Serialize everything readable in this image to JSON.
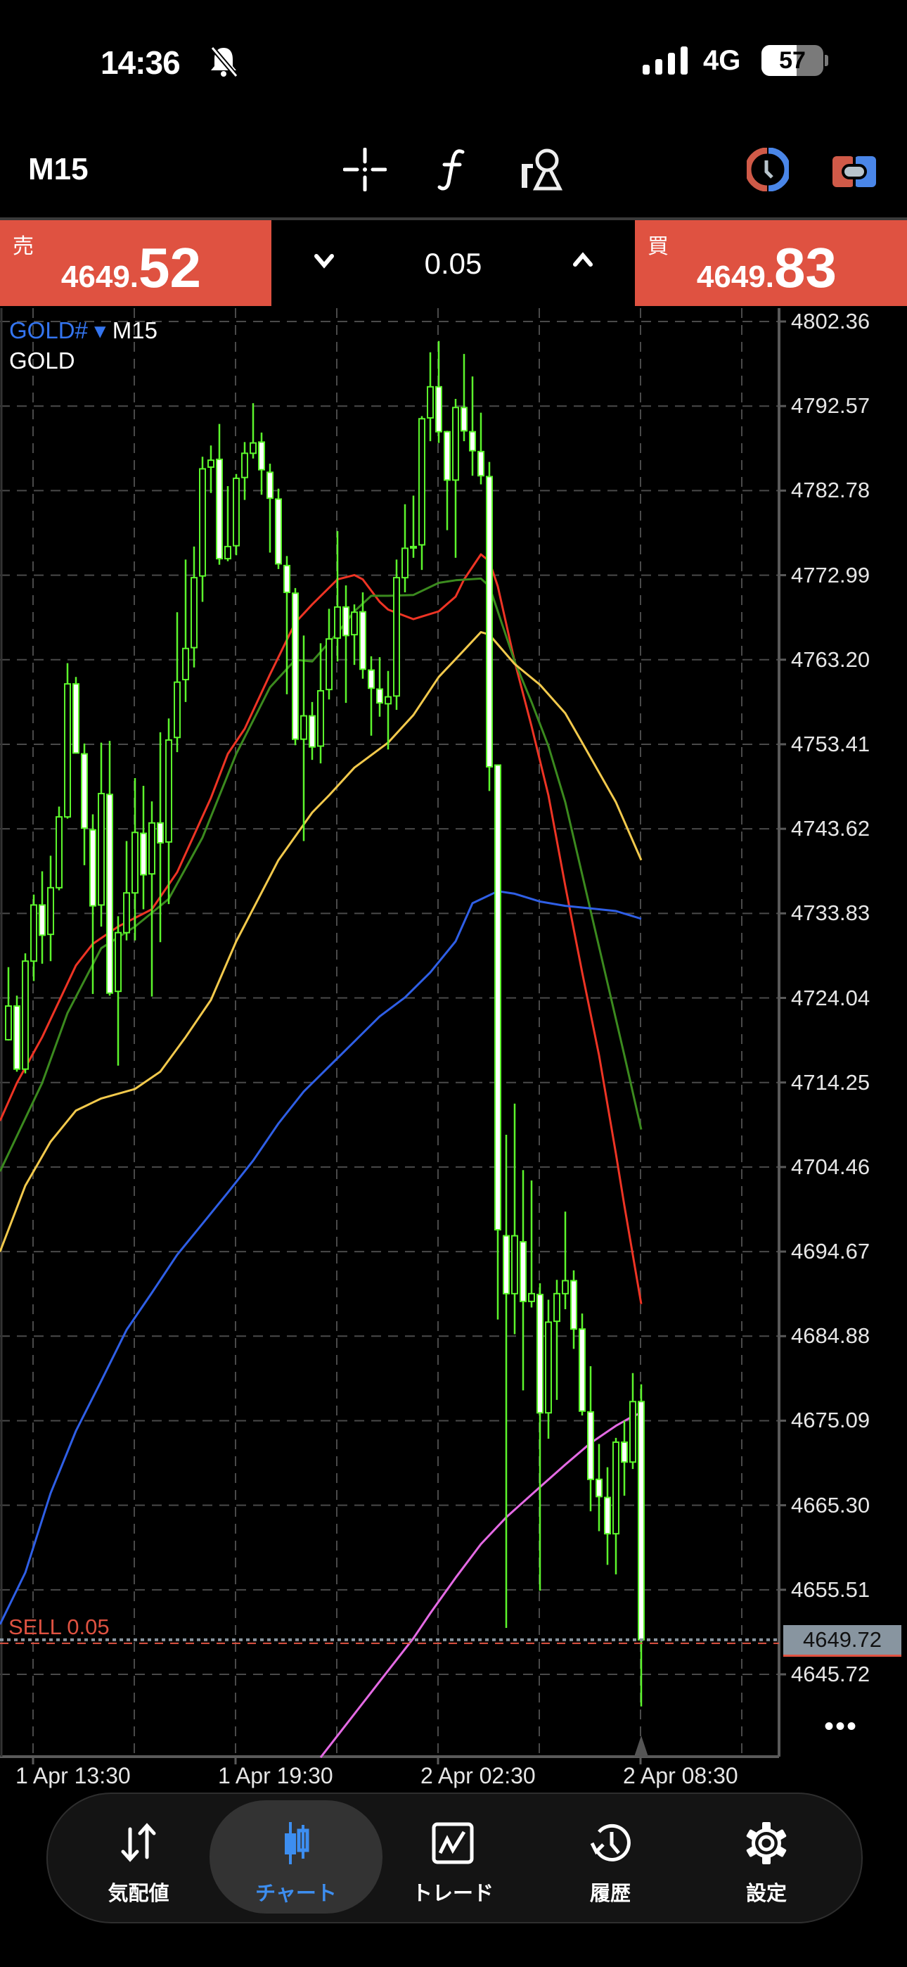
{
  "status_bar": {
    "time": "14:36",
    "network": "4G",
    "battery": "57",
    "battery_percent": 57,
    "icons": [
      "bell-slash-icon",
      "signal-icon",
      "battery-icon"
    ]
  },
  "toolbar": {
    "timeframe": "M15",
    "icons": [
      "crosshair-icon",
      "indicator-f-icon",
      "objects-icon",
      "one-click-trading-icon",
      "trade-toggle-icon"
    ]
  },
  "trade_panel": {
    "sell": {
      "label": "売",
      "price_prefix": "4649.",
      "price_suffix": "52"
    },
    "buy": {
      "label": "買",
      "price_prefix": "4649.",
      "price_suffix": "83"
    },
    "volume": "0.05"
  },
  "chart_header": {
    "symbol": "GOLD#",
    "timeframe": "M15",
    "description": "GOLD"
  },
  "position_line": {
    "label": "SELL 0.05",
    "price": 4649.72
  },
  "current_price": "4649.72",
  "more_label": "•••",
  "colors": {
    "bull_outline": "#5cf52c",
    "bear_fill": "#ffffff",
    "ma_red": "#ee3424",
    "ma_green": "#3b8a1e",
    "ma_yellow": "#f2c94c",
    "ma_blue": "#2f5fe6",
    "ma_magenta": "#e46ae4",
    "sell": "#df5241",
    "accent": "#3d8ef0"
  },
  "nav": {
    "items": [
      {
        "label": "気配値",
        "icon": "quotes-arrows-icon"
      },
      {
        "label": "チャート",
        "icon": "candlestick-icon",
        "active": true
      },
      {
        "label": "トレード",
        "icon": "trade-chart-icon"
      },
      {
        "label": "履歴",
        "icon": "history-icon"
      },
      {
        "label": "設定",
        "icon": "gear-icon"
      }
    ]
  },
  "chart_data": {
    "type": "candlestick",
    "symbol": "GOLD#",
    "timeframe": "M15",
    "y_ticks": [
      "4802.36",
      "4792.57",
      "4782.78",
      "4772.99",
      "4763.20",
      "4753.41",
      "4743.62",
      "4733.83",
      "4724.04",
      "4714.25",
      "4704.46",
      "4694.67",
      "4684.88",
      "4675.09",
      "4665.30",
      "4655.51",
      "4645.72"
    ],
    "x_ticks": [
      {
        "label": "1 Apr 13:30",
        "time": "1 Apr 13:30"
      },
      {
        "label": "1 Apr 19:30",
        "time": "1 Apr 19:30"
      },
      {
        "label": "2 Apr 02:30",
        "time": "2 Apr 02:30"
      },
      {
        "label": "2 Apr 08:30",
        "time": "2 Apr 08:30"
      }
    ],
    "grid": true,
    "candle_fields": [
      "time",
      "open",
      "high",
      "low",
      "close"
    ],
    "candles": [
      [
        "1 Apr 12:45",
        4719.2,
        4727.6,
        4719.1,
        4723.1
      ],
      [
        "1 Apr 13:00",
        4723.1,
        4724.3,
        4715.5,
        4715.8
      ],
      [
        "1 Apr 13:15",
        4715.8,
        4729.2,
        4715.3,
        4728.3
      ],
      [
        "1 Apr 13:30",
        4728.3,
        4736.0,
        4726.0,
        4734.8
      ],
      [
        "1 Apr 13:45",
        4734.8,
        4738.7,
        4728.0,
        4731.3
      ],
      [
        "1 Apr 14:00",
        4731.4,
        4740.5,
        4728.3,
        4736.8
      ],
      [
        "1 Apr 14:15",
        4736.8,
        4746.2,
        4736.5,
        4745.0
      ],
      [
        "1 Apr 14:30",
        4745.0,
        4762.8,
        4744.8,
        4760.4
      ],
      [
        "1 Apr 14:45",
        4760.4,
        4761.2,
        4752.4,
        4752.4
      ],
      [
        "1 Apr 15:00",
        4752.3,
        4753.5,
        4739.4,
        4743.7
      ],
      [
        "1 Apr 15:15",
        4743.5,
        4745.3,
        4724.5,
        4734.7
      ],
      [
        "1 Apr 15:30",
        4734.8,
        4753.6,
        4732.3,
        4747.7
      ],
      [
        "1 Apr 15:45",
        4747.6,
        4753.8,
        4724.3,
        4724.6
      ],
      [
        "1 Apr 16:00",
        4724.8,
        4733.5,
        4716.2,
        4731.6
      ],
      [
        "1 Apr 16:15",
        4731.6,
        4742.2,
        4730.7,
        4736.2
      ],
      [
        "1 Apr 16:30",
        4736.2,
        4749.5,
        4730.7,
        4743.2
      ],
      [
        "1 Apr 16:45",
        4743.1,
        4748.6,
        4734.3,
        4738.3
      ],
      [
        "1 Apr 17:00",
        4738.4,
        4746.8,
        4724.2,
        4744.3
      ],
      [
        "1 Apr 17:15",
        4744.3,
        4754.8,
        4730.5,
        4742.0
      ],
      [
        "1 Apr 17:30",
        4742.1,
        4756.4,
        4734.9,
        4753.9
      ],
      [
        "1 Apr 17:45",
        4754.2,
        4768.7,
        4752.5,
        4760.6
      ],
      [
        "1 Apr 18:00",
        4760.9,
        4774.8,
        4758.3,
        4764.5
      ],
      [
        "1 Apr 18:15",
        4764.6,
        4776.3,
        4762.3,
        4772.7
      ],
      [
        "1 Apr 18:30",
        4772.9,
        4786.7,
        4769.9,
        4785.3
      ],
      [
        "1 Apr 18:45",
        4785.5,
        4788.0,
        4782.5,
        4786.3
      ],
      [
        "1 Apr 19:00",
        4786.4,
        4790.5,
        4774.2,
        4774.9
      ],
      [
        "1 Apr 19:15",
        4774.9,
        4783.3,
        4774.6,
        4776.3
      ],
      [
        "1 Apr 19:30",
        4776.4,
        4784.7,
        4775.3,
        4784.2
      ],
      [
        "1 Apr 19:45",
        4784.3,
        4788.4,
        4781.7,
        4787.1
      ],
      [
        "1 Apr 20:00",
        4787.1,
        4792.9,
        4786.5,
        4788.3
      ],
      [
        "1 Apr 20:15",
        4788.4,
        4789.5,
        4782.3,
        4785.2
      ],
      [
        "1 Apr 20:30",
        4784.9,
        4785.9,
        4775.6,
        4781.9
      ],
      [
        "1 Apr 20:45",
        4781.8,
        4783.0,
        4773.7,
        4774.3
      ],
      [
        "1 Apr 21:00",
        4774.1,
        4775.2,
        4759.2,
        4771.0
      ],
      [
        "1 Apr 21:15",
        4770.9,
        4771.5,
        4753.3,
        4754.0
      ],
      [
        "1 Apr 21:30",
        4754.0,
        4766.0,
        4742.2,
        4756.7
      ],
      [
        "1 Apr 21:45",
        4756.7,
        4758.3,
        4751.6,
        4753.1
      ],
      [
        "1 Apr 22:00",
        4753.2,
        4765.1,
        4751.2,
        4759.6
      ],
      [
        "1 Apr 22:15",
        4759.75,
        4769.1,
        4758.6,
        4765.6
      ],
      [
        "1 Apr 22:30",
        4765.7,
        4778.1,
        4763.0,
        4769.3
      ],
      [
        "1 Apr 22:45",
        4769.3,
        4771.8,
        4758.2,
        4766.0
      ],
      [
        "1 Apr 23:00",
        4766.1,
        4769.6,
        4762.6,
        4768.7
      ],
      [
        "1 Apr 23:15",
        4768.75,
        4771.0,
        4761.0,
        4762.1
      ],
      [
        "1 Apr 23:30",
        4762.0,
        4763.6,
        4754.4,
        4759.9
      ],
      [
        "1 Apr 23:45",
        4759.8,
        4763.5,
        4756.6,
        4758.2
      ],
      [
        "2 Apr 01:00",
        4758.1,
        4761.9,
        4752.8,
        4758.9
      ],
      [
        "2 Apr 01:15",
        4759.0,
        4774.8,
        4757.4,
        4772.7
      ],
      [
        "2 Apr 01:30",
        4772.7,
        4781.2,
        4771.0,
        4776.1
      ],
      [
        "2 Apr 01:45",
        4776.3,
        4782.2,
        4775.0,
        4776.3
      ],
      [
        "2 Apr 02:00",
        4776.5,
        4791.4,
        4773.6,
        4791.1
      ],
      [
        "2 Apr 02:15",
        4791.2,
        4798.8,
        4788.5,
        4794.8
      ],
      [
        "2 Apr 02:30",
        4794.8,
        4800.1,
        4788.3,
        4789.6
      ],
      [
        "2 Apr 02:45",
        4789.6,
        4789.7,
        4778.2,
        4784.0
      ],
      [
        "2 Apr 03:00",
        4784.0,
        4793.4,
        4775.0,
        4792.4
      ],
      [
        "2 Apr 03:15",
        4792.4,
        4798.6,
        4788.5,
        4789.7
      ],
      [
        "2 Apr 03:30",
        4789.6,
        4796.0,
        4784.5,
        4787.4
      ],
      [
        "2 Apr 03:45",
        4787.3,
        4791.8,
        4783.5,
        4784.5
      ],
      [
        "2 Apr 04:00",
        4784.4,
        4786.1,
        4748.0,
        4750.8
      ],
      [
        "2 Apr 04:15",
        4751.0,
        4751.0,
        4686.8,
        4697.2
      ],
      [
        "2 Apr 04:30",
        4696.5,
        4708.2,
        4651.1,
        4689.8
      ],
      [
        "2 Apr 04:45",
        4689.8,
        4711.8,
        4685.1,
        4696.5
      ],
      [
        "2 Apr 05:00",
        4695.8,
        4704.1,
        4678.6,
        4688.9
      ],
      [
        "2 Apr 05:15",
        4688.9,
        4702.9,
        4688.2,
        4689.8
      ],
      [
        "2 Apr 05:30",
        4689.7,
        4691.0,
        4655.4,
        4676.0
      ],
      [
        "2 Apr 05:45",
        4676.0,
        4689.1,
        4673.0,
        4686.5
      ],
      [
        "2 Apr 06:00",
        4686.6,
        4691.4,
        4677.5,
        4689.8
      ],
      [
        "2 Apr 06:15",
        4689.8,
        4699.3,
        4688.0,
        4691.3
      ],
      [
        "2 Apr 06:30",
        4691.3,
        4692.5,
        4683.4,
        4685.7
      ],
      [
        "2 Apr 06:45",
        4685.7,
        4687.5,
        4675.7,
        4676.2
      ],
      [
        "2 Apr 07:00",
        4676.1,
        4681.4,
        4664.6,
        4668.3
      ],
      [
        "2 Apr 07:15",
        4668.3,
        4672.4,
        4662.3,
        4666.3
      ],
      [
        "2 Apr 07:30",
        4666.2,
        4669.7,
        4658.4,
        4662.0
      ],
      [
        "2 Apr 07:45",
        4662.0,
        4673.1,
        4657.3,
        4672.6
      ],
      [
        "2 Apr 08:00",
        4672.6,
        4675.1,
        4666.4,
        4670.3
      ],
      [
        "2 Apr 08:15",
        4670.3,
        4680.6,
        4669.5,
        4677.3
      ],
      [
        "2 Apr 08:30",
        4677.3,
        4679.3,
        4642.0,
        4649.72
      ]
    ],
    "moving_averages": [
      {
        "color": "#ee3424",
        "points": [
          [
            "1 Apr 12:45",
            4712
          ],
          [
            "1 Apr 13:00",
            4714.2
          ],
          [
            "1 Apr 13:45",
            4719.5
          ],
          [
            "1 Apr 14:45",
            4727.8
          ],
          [
            "1 Apr 15:15",
            4730.3
          ],
          [
            "1 Apr 16:00",
            4732.3
          ],
          [
            "1 Apr 17:00",
            4734.3
          ],
          [
            "1 Apr 17:45",
            4738.6
          ],
          [
            "1 Apr 18:45",
            4747.2
          ],
          [
            "1 Apr 19:15",
            4752.3
          ],
          [
            "1 Apr 19:45",
            4755.2
          ],
          [
            "1 Apr 20:30",
            4761.5
          ],
          [
            "1 Apr 21:15",
            4767.5
          ],
          [
            "1 Apr 21:45",
            4769.6
          ],
          [
            "1 Apr 22:30",
            4772.5
          ],
          [
            "1 Apr 23:00",
            4773.0
          ],
          [
            "1 Apr 23:15",
            4772.5
          ],
          [
            "1 Apr 23:45",
            4769.9
          ],
          [
            "2 Apr 01:00",
            4769.0
          ],
          [
            "2 Apr 01:45",
            4767.9
          ],
          [
            "2 Apr 02:30",
            4768.8
          ],
          [
            "2 Apr 03:00",
            4770.5
          ],
          [
            "2 Apr 03:15",
            4772.5
          ],
          [
            "2 Apr 03:45",
            4775.4
          ],
          [
            "2 Apr 04:00",
            4774.6
          ],
          [
            "2 Apr 04:15",
            4771.7
          ],
          [
            "2 Apr 04:45",
            4763.0
          ],
          [
            "2 Apr 05:15",
            4755.5
          ],
          [
            "2 Apr 05:45",
            4747.5
          ],
          [
            "2 Apr 06:15",
            4737.0
          ],
          [
            "2 Apr 06:45",
            4727.0
          ],
          [
            "2 Apr 07:15",
            4717.4
          ],
          [
            "2 Apr 07:45",
            4706.0
          ],
          [
            "2 Apr 08:00",
            4700.0
          ],
          [
            "2 Apr 08:30",
            4688.6
          ]
        ]
      },
      {
        "color": "#3b8a1e",
        "points": [
          [
            "1 Apr 12:45",
            4706
          ],
          [
            "1 Apr 13:45",
            4714.2
          ],
          [
            "1 Apr 14:30",
            4722.3
          ],
          [
            "1 Apr 15:30",
            4729.8
          ],
          [
            "1 Apr 16:30",
            4732.3
          ],
          [
            "1 Apr 17:30",
            4735.5
          ],
          [
            "1 Apr 18:30",
            4742.6
          ],
          [
            "1 Apr 19:30",
            4752.3
          ],
          [
            "1 Apr 20:30",
            4760.0
          ],
          [
            "1 Apr 21:15",
            4763.2
          ],
          [
            "1 Apr 21:45",
            4763.0
          ],
          [
            "1 Apr 22:30",
            4766.3
          ],
          [
            "1 Apr 23:00",
            4768.8
          ],
          [
            "1 Apr 23:30",
            4770.6
          ],
          [
            "2 Apr 01:00",
            4770.6
          ],
          [
            "2 Apr 01:45",
            4770.7
          ],
          [
            "2 Apr 02:30",
            4772.1
          ],
          [
            "2 Apr 03:00",
            4772.4
          ],
          [
            "2 Apr 03:45",
            4772.6
          ],
          [
            "2 Apr 04:00",
            4771.7
          ],
          [
            "2 Apr 04:15",
            4768.8
          ],
          [
            "2 Apr 04:45",
            4763.0
          ],
          [
            "2 Apr 05:15",
            4758.3
          ],
          [
            "2 Apr 05:45",
            4753.2
          ],
          [
            "2 Apr 06:15",
            4746.7
          ],
          [
            "2 Apr 08:00",
            4717.4
          ],
          [
            "2 Apr 08:30",
            4708.8
          ]
        ]
      },
      {
        "color": "#f2c94c",
        "points": [
          [
            "1 Apr 12:45",
            4697.2
          ],
          [
            "1 Apr 13:15",
            4702.3
          ],
          [
            "1 Apr 14:00",
            4707.4
          ],
          [
            "1 Apr 14:45",
            4711.0
          ],
          [
            "1 Apr 15:30",
            4712.4
          ],
          [
            "1 Apr 16:30",
            4713.5
          ],
          [
            "1 Apr 17:15",
            4715.5
          ],
          [
            "1 Apr 18:00",
            4719.5
          ],
          [
            "1 Apr 18:45",
            4723.8
          ],
          [
            "1 Apr 19:30",
            4730.6
          ],
          [
            "1 Apr 20:45",
            4740.0
          ],
          [
            "1 Apr 21:45",
            4745.5
          ],
          [
            "1 Apr 22:15",
            4747.5
          ],
          [
            "1 Apr 23:00",
            4750.7
          ],
          [
            "2 Apr 01:00",
            4753.6
          ],
          [
            "2 Apr 01:45",
            4756.8
          ],
          [
            "2 Apr 02:30",
            4761.2
          ],
          [
            "2 Apr 03:15",
            4764.3
          ],
          [
            "2 Apr 03:45",
            4766.4
          ],
          [
            "2 Apr 04:00",
            4766.1
          ],
          [
            "2 Apr 04:45",
            4762.7
          ],
          [
            "2 Apr 05:30",
            4760.3
          ],
          [
            "2 Apr 06:15",
            4757.0
          ],
          [
            "2 Apr 06:45",
            4753.6
          ],
          [
            "2 Apr 07:45",
            4746.7
          ],
          [
            "2 Apr 08:30",
            4740.0
          ]
        ]
      },
      {
        "color": "#2f5fe6",
        "points": [
          [
            "1 Apr 12:45",
            4653.5
          ],
          [
            "1 Apr 13:15",
            4657.5
          ],
          [
            "1 Apr 14:00",
            4666.7
          ],
          [
            "1 Apr 14:45",
            4673.9
          ],
          [
            "1 Apr 15:30",
            4679.7
          ],
          [
            "1 Apr 16:15",
            4685.6
          ],
          [
            "1 Apr 17:00",
            4689.9
          ],
          [
            "1 Apr 17:45",
            4694.3
          ],
          [
            "1 Apr 18:30",
            4697.9
          ],
          [
            "1 Apr 19:15",
            4701.5
          ],
          [
            "1 Apr 20:00",
            4705.2
          ],
          [
            "1 Apr 20:45",
            4709.5
          ],
          [
            "1 Apr 21:30",
            4713.2
          ],
          [
            "1 Apr 22:15",
            4716.1
          ],
          [
            "1 Apr 23:00",
            4719.0
          ],
          [
            "1 Apr 23:45",
            4721.9
          ],
          [
            "2 Apr 01:30",
            4724.1
          ],
          [
            "2 Apr 02:15",
            4727.0
          ],
          [
            "2 Apr 03:00",
            4730.6
          ],
          [
            "2 Apr 03:30",
            4735.0
          ],
          [
            "2 Apr 04:15",
            4736.4
          ],
          [
            "2 Apr 04:45",
            4736.1
          ],
          [
            "2 Apr 05:30",
            4735.2
          ],
          [
            "2 Apr 06:15",
            4734.7
          ],
          [
            "2 Apr 07:00",
            4734.4
          ],
          [
            "2 Apr 07:45",
            4734.1
          ],
          [
            "2 Apr 08:30",
            4733.2
          ]
        ]
      },
      {
        "color": "#e46ae4",
        "points": [
          [
            "1 Apr 22:00",
            4636.1
          ],
          [
            "1 Apr 23:45",
            4644.9
          ],
          [
            "2 Apr 01:45",
            4649.9
          ],
          [
            "2 Apr 02:15",
            4652.8
          ],
          [
            "2 Apr 03:00",
            4656.9
          ],
          [
            "2 Apr 03:45",
            4660.8
          ],
          [
            "2 Apr 04:30",
            4663.9
          ],
          [
            "2 Apr 05:30",
            4667.4
          ],
          [
            "2 Apr 06:15",
            4670.0
          ],
          [
            "2 Apr 07:00",
            4672.5
          ],
          [
            "2 Apr 07:45",
            4674.5
          ],
          [
            "2 Apr 08:15",
            4675.6
          ],
          [
            "2 Apr 08:30",
            4676.0
          ]
        ]
      }
    ]
  }
}
